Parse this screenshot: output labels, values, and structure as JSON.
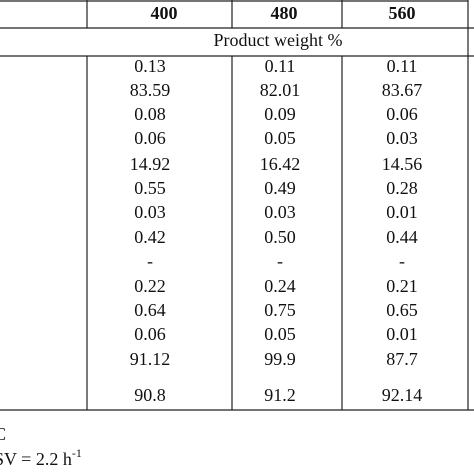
{
  "table": {
    "header": [
      "400",
      "480",
      "560"
    ],
    "subheader": "Product weight %",
    "rows": [
      [
        "0.13",
        "0.11",
        "0.11"
      ],
      [
        "83.59",
        "82.01",
        "83.67"
      ],
      [
        "0.08",
        "0.09",
        "0.06"
      ],
      [
        "0.06",
        "0.05",
        "0.03"
      ],
      [
        "14.92",
        "16.42",
        "14.56"
      ],
      [
        "0.55",
        "0.49",
        "0.28"
      ],
      [
        "0.03",
        "0.03",
        "0.01"
      ],
      [
        "0.42",
        "0.50",
        "0.44"
      ],
      [
        "-",
        "-",
        "-"
      ],
      [
        "0.22",
        "0.24",
        "0.21"
      ],
      [
        "0.64",
        "0.75",
        "0.65"
      ],
      [
        "0.06",
        "0.05",
        "0.01"
      ],
      [
        "91.12",
        "99.9",
        "87.7"
      ],
      [
        "90.8",
        "91.2",
        "92.14"
      ]
    ]
  },
  "footnotes": [
    {
      "text": "C"
    },
    {
      "text": "SV = 2.2 h",
      "sup": "-1"
    }
  ]
}
